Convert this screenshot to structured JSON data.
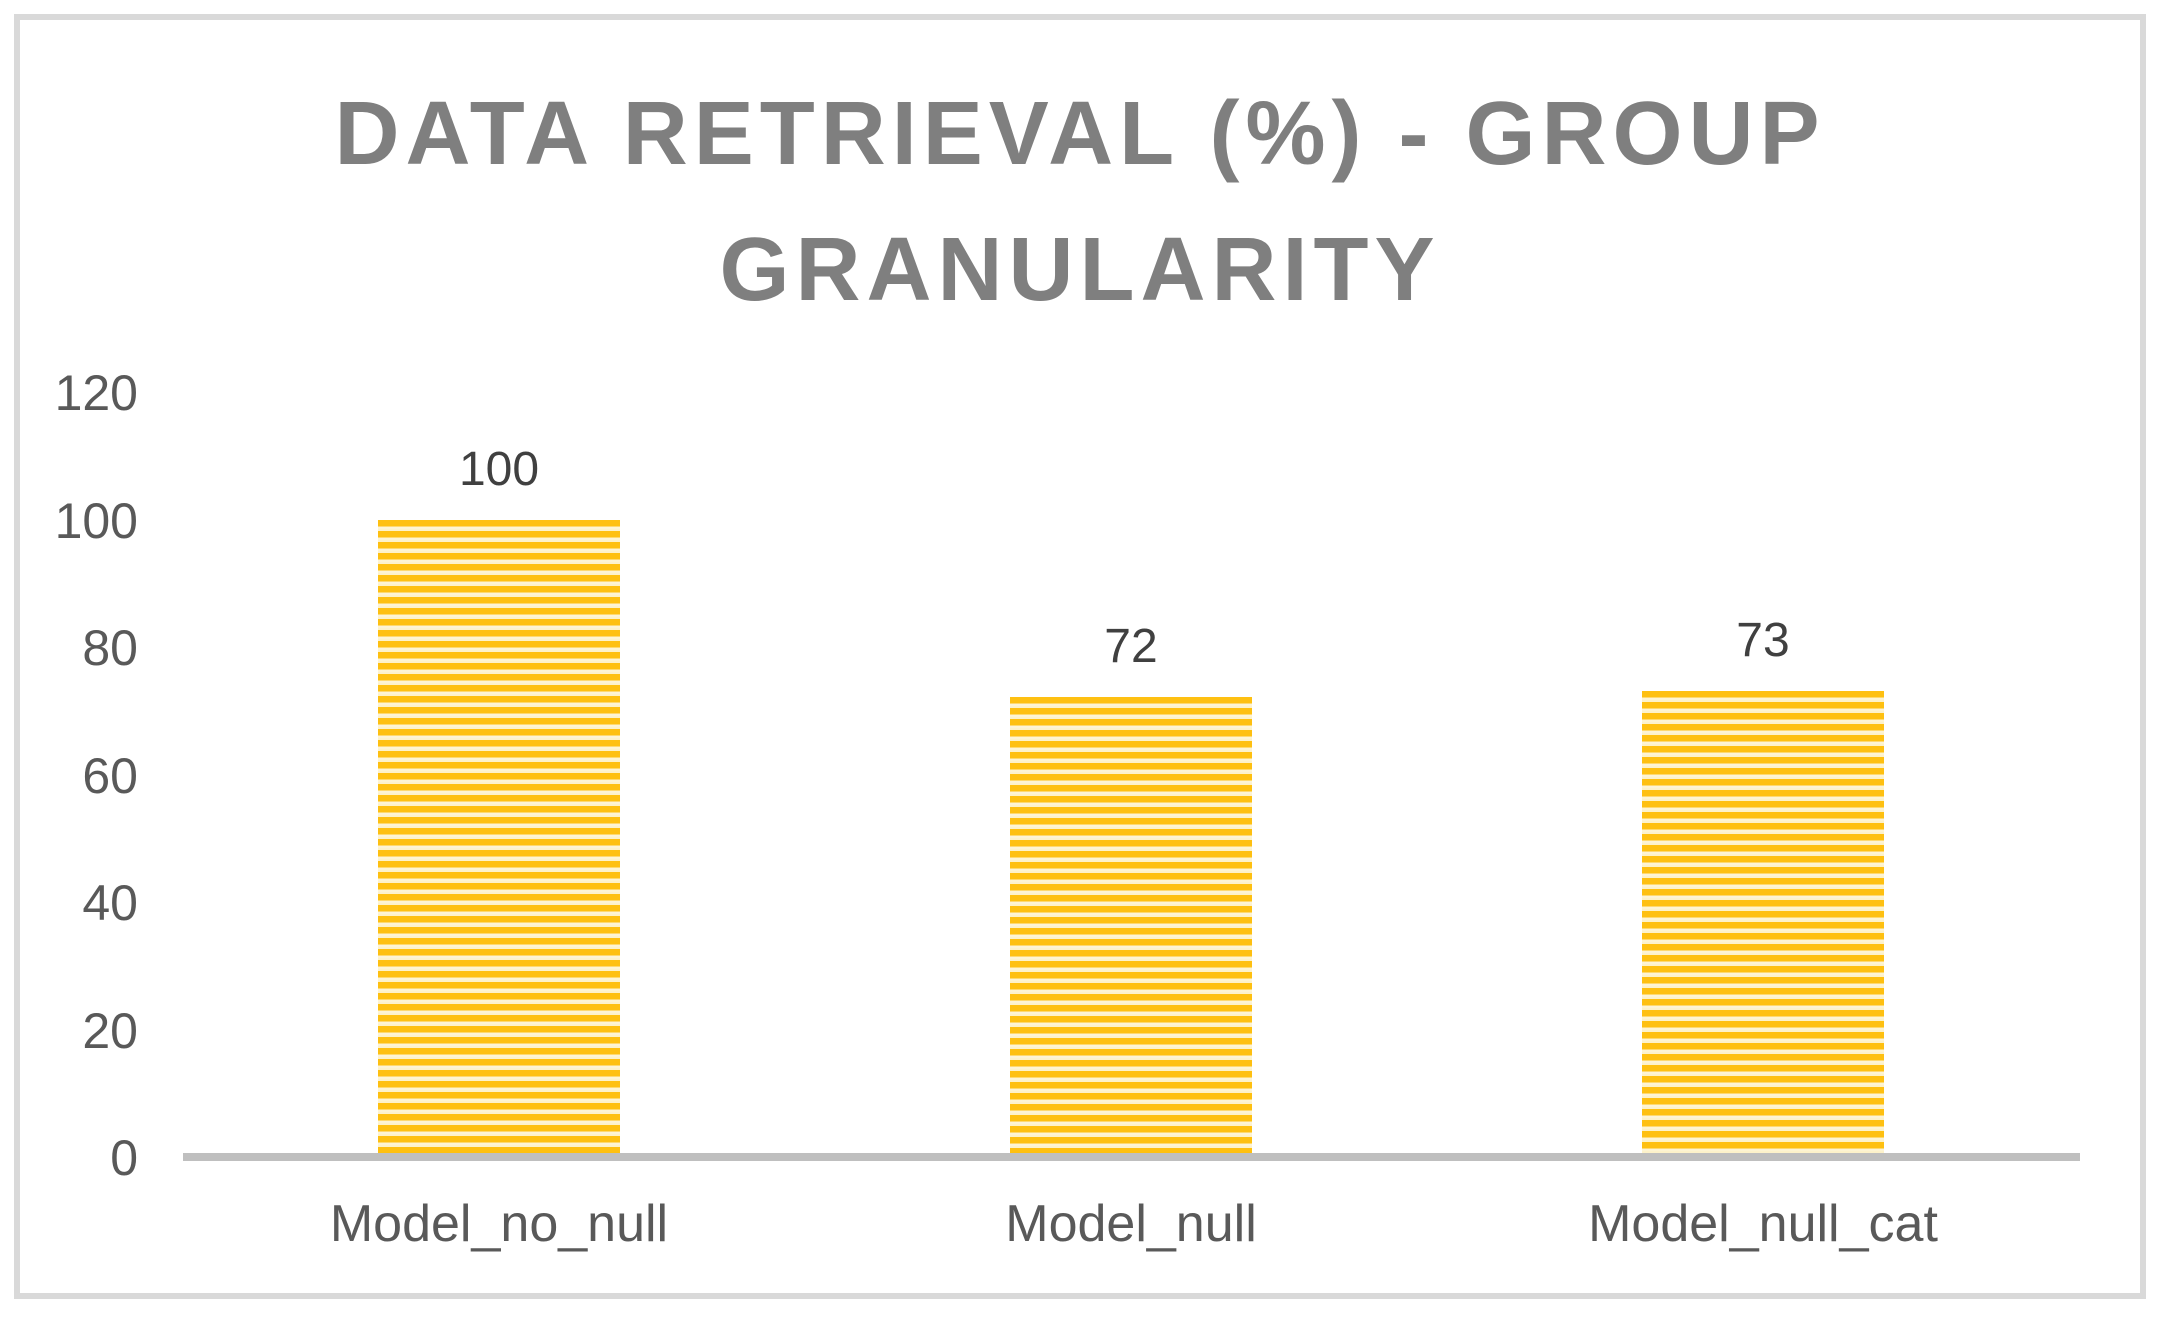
{
  "chart_data": {
    "type": "bar",
    "title": "DATA RETRIEVAL (%) - GROUP GRANULARITY",
    "title_lines": [
      "DATA RETRIEVAL (%) - GROUP",
      "GRANULARITY"
    ],
    "categories": [
      "Model_no_null",
      "Model_null",
      "Model_null_cat"
    ],
    "values": [
      100,
      72,
      73
    ],
    "data_labels": [
      "100",
      "72",
      "73"
    ],
    "xlabel": "",
    "ylabel": "",
    "ylim": [
      0,
      120
    ],
    "yticks": [
      0,
      20,
      40,
      60,
      80,
      100,
      120
    ],
    "ytick_labels_top_to_bottom": [
      "120",
      "100",
      "80",
      "60",
      "40",
      "20",
      "0"
    ],
    "grid": false,
    "legend": false,
    "bar_fill_pattern": "thin-horizontal-stripes",
    "colors": {
      "bar_orange": "#FEC011",
      "bar_stripe_light": "#FDF2CA",
      "axis_line": "#BFBFBF",
      "title_text": "#7F7F7F",
      "tick_text": "#595959",
      "category_text": "#595959",
      "value_label_text": "#404040",
      "frame_border": "#D9D9D9",
      "background": "#FFFFFF"
    }
  }
}
